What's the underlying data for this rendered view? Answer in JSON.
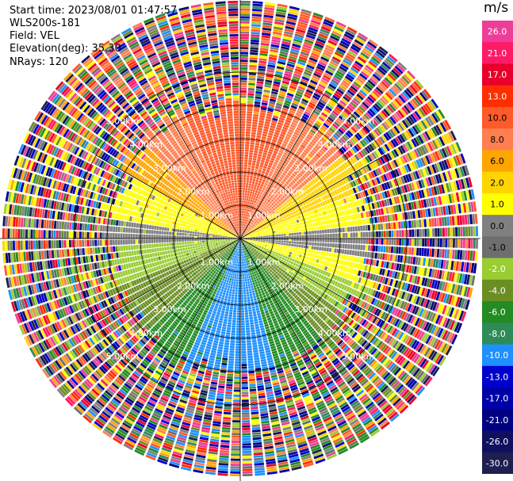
{
  "header": {
    "start_time": "Start time: 2023/08/01 01:47:57",
    "instrument": "WLS200s-181",
    "field": "Field: VEL",
    "elevation": "Elevation(deg): 35.30",
    "nrays": "NRays: 120"
  },
  "colorbar": {
    "unit": "m/s",
    "ticks": [
      "26.0",
      "21.0",
      "17.0",
      "13.0",
      "10.0",
      "8.0",
      "6.0",
      "2.0",
      "1.0",
      "0.0",
      "-1.0",
      "-2.0",
      "-4.0",
      "-6.0",
      "-8.0",
      "-10.0",
      "-13.0",
      "-17.0",
      "-21.0",
      "-26.0",
      "-30.0"
    ],
    "colors": [
      "#ee3d96",
      "#ff1a66",
      "#e8002b",
      "#ff2d00",
      "#ff5a2a",
      "#ff7f50",
      "#ffa500",
      "#ffd400",
      "#ffff00",
      "#808080",
      "#6e6e6e",
      "#9acd32",
      "#6b8e23",
      "#228b22",
      "#2e8b57",
      "#1e90ff",
      "#0000cd",
      "#0000aa",
      "#000080",
      "#101060",
      "#1e1e50"
    ]
  },
  "chart_data": {
    "type": "heatmap",
    "title": "",
    "field": "VEL",
    "units": "m/s",
    "projection": "polar (PPI)",
    "n_rays": 120,
    "elevation_deg": 35.3,
    "color_range": [
      -30.0,
      26.0
    ],
    "range_ring_labels": [
      "1.00km",
      "2.00km",
      "3.00km",
      "4.00km",
      "5.00km"
    ],
    "range_rings_km": [
      1,
      2,
      3,
      4,
      5
    ],
    "velocity_pattern": {
      "north_sector": "positive 6 to 10 m/s (orange/salmon)",
      "east_and_west_band": "around 1 to 2 m/s (yellow) and 0 (gray)",
      "southeast_sector": "negative -2 to -4 m/s (yellow-green)",
      "south_sector": "negative -8 to -13 m/s (blue)",
      "southwest_sector": "negative -6 m/s (green)",
      "beyond_4km": "noisy, mixed values"
    }
  }
}
